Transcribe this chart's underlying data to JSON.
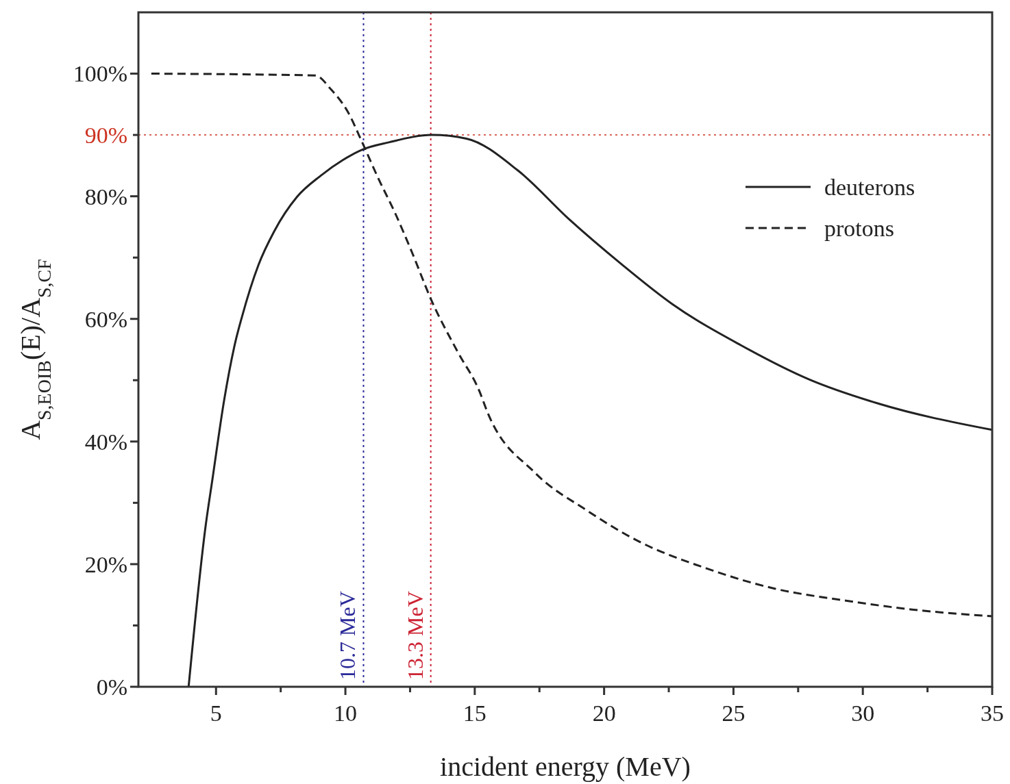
{
  "chart_data": {
    "type": "line",
    "xlabel": "incident energy (MeV)",
    "ylabel": "A$_{S,EOIB}$(E)/A$_{S,CF}$",
    "xlim": [
      2,
      35
    ],
    "xticks": [
      5,
      {
        "value": 7.5,
        "label": null
      },
      10,
      {
        "value": 12.5,
        "label": null
      },
      15,
      {
        "value": 17.5,
        "label": null
      },
      20,
      {
        "value": 22.5,
        "label": null
      },
      25,
      {
        "value": 27.5,
        "label": null
      },
      30,
      {
        "value": 32.5,
        "label": null
      },
      35
    ],
    "ylim": [
      0,
      110
    ],
    "yticks": [
      {
        "value": 0,
        "label": "0%"
      },
      {
        "value": 10,
        "label": null
      },
      {
        "value": 20,
        "label": "20%"
      },
      {
        "value": 30,
        "label": null
      },
      {
        "value": 40,
        "label": "40%"
      },
      {
        "value": 50,
        "label": null
      },
      {
        "value": 60,
        "label": "60%"
      },
      {
        "value": 70,
        "label": null
      },
      {
        "value": 80,
        "label": "80%"
      },
      {
        "value": 90,
        "label": null
      },
      {
        "value": 100,
        "label": "100%"
      }
    ],
    "grid": false,
    "legend": "top right",
    "marker": "none",
    "series": [
      {
        "name": "deuterons",
        "color": "#222222",
        "line_style": "solid",
        "x": [
          3.94,
          4.6,
          4.86,
          5.32,
          5.74,
          6.0,
          6.64,
          7.25,
          8.13,
          9.03,
          9.9,
          10.65,
          11.68,
          13.35,
          14.68,
          16.67,
          18.66,
          20.65,
          22.64,
          25.29,
          27.94,
          30.59,
          35
        ],
        "values": [
          0,
          26.3,
          33.8,
          46.9,
          56.1,
          60.3,
          68.8,
          74.3,
          79.9,
          83.3,
          85.9,
          87.6,
          88.8,
          90.0,
          89.4,
          84.2,
          76.2,
          69.0,
          62.4,
          55.7,
          50.1,
          46.2,
          41.9
        ]
      },
      {
        "name": "protons",
        "color": "#222222",
        "line_style": "dashed",
        "x": [
          2.5,
          8.84,
          9.45,
          10.09,
          10.65,
          11.23,
          11.95,
          12.56,
          13.35,
          14.33,
          15.2,
          15.47,
          17.33,
          19.32,
          21.3,
          23.96,
          26.6,
          29.27,
          31.9,
          35
        ],
        "values": [
          100,
          99.7,
          97.4,
          93.8,
          88.8,
          83.3,
          77.0,
          71.0,
          62.8,
          54.7,
          48.0,
          45.0,
          34.9,
          28.8,
          23.8,
          19.3,
          16.0,
          14.1,
          12.6,
          11.5
        ]
      }
    ],
    "ref_lines": [
      {
        "axis": "y",
        "value": 90,
        "label": "90%",
        "color": "#cc3322",
        "line_style": "dotted"
      },
      {
        "axis": "x",
        "value": 10.7,
        "label": "10.7 MeV",
        "color": "#2a2a99",
        "line_style": "dotted"
      },
      {
        "axis": "x",
        "value": 13.3,
        "label": "13.3 MeV",
        "color": "#cc2233",
        "line_style": "dotted"
      }
    ]
  }
}
